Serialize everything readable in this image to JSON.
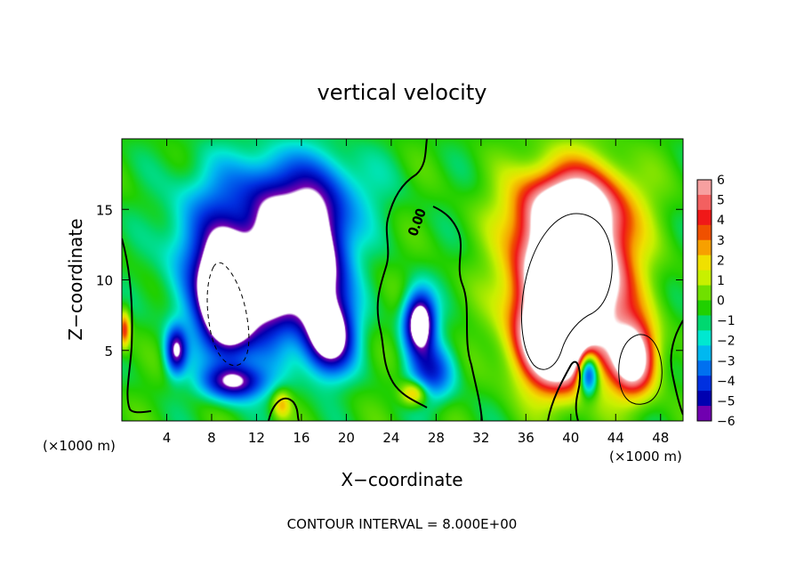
{
  "chart_data": {
    "type": "heatmap",
    "title": "vertical velocity",
    "xlabel": "X−coordinate",
    "ylabel": "Z−coordinate",
    "x_unit_left": "(×1000 m)",
    "x_unit_right": "(×1000 m)",
    "footer": "CONTOUR INTERVAL = 8.000E+00",
    "contour_label": "0.00",
    "xlim": [
      0,
      50
    ],
    "ylim": [
      0,
      20
    ],
    "x_ticks": [
      "4",
      "8",
      "12",
      "16",
      "20",
      "24",
      "28",
      "32",
      "36",
      "40",
      "44",
      "48"
    ],
    "x_tick_values": [
      4,
      8,
      12,
      16,
      20,
      24,
      28,
      32,
      36,
      40,
      44,
      48
    ],
    "y_ticks": [
      "5",
      "10",
      "15"
    ],
    "y_tick_values": [
      5,
      10,
      15
    ],
    "colorbar": {
      "labels": [
        "6",
        "5",
        "4",
        "3",
        "2",
        "1",
        "0",
        "−1",
        "−2",
        "−3",
        "−4",
        "−5",
        "−6"
      ],
      "values": [
        6,
        5,
        4,
        3,
        2,
        1,
        0,
        -1,
        -2,
        -3,
        -4,
        -5,
        -6
      ],
      "colors_top_to_bottom": [
        "#f7a0a0",
        "#f36060",
        "#f01818",
        "#f05000",
        "#f7a000",
        "#f0e000",
        "#c8f000",
        "#70e000",
        "#20d000",
        "#00d870",
        "#00e8d0",
        "#00b8f0",
        "#0070f0",
        "#0030e0",
        "#0000b0",
        "#7000b0"
      ]
    },
    "field_blobs": [
      {
        "x": 9.5,
        "z": 8.8,
        "sx": 2.2,
        "sz": 3.6,
        "amp": -14
      },
      {
        "x": 7.8,
        "z": 11.5,
        "sx": 3.5,
        "sz": 5,
        "amp": -4
      },
      {
        "x": 13,
        "z": 10.5,
        "sx": 2.1,
        "sz": 4.5,
        "amp": -8
      },
      {
        "x": 17,
        "z": 11,
        "sx": 2.8,
        "sz": 4.5,
        "amp": -10
      },
      {
        "x": 18.5,
        "z": 6,
        "sx": 2,
        "sz": 2.4,
        "amp": -8
      },
      {
        "x": 15,
        "z": 16,
        "sx": 6,
        "sz": 3,
        "amp": -4
      },
      {
        "x": 4.8,
        "z": 5,
        "sx": 0.9,
        "sz": 1.6,
        "amp": -6
      },
      {
        "x": 10,
        "z": 2.8,
        "sx": 2.6,
        "sz": 1.2,
        "amp": -6
      },
      {
        "x": 26.5,
        "z": 7,
        "sx": 1.3,
        "sz": 2,
        "amp": -9
      },
      {
        "x": 27.5,
        "z": 3.5,
        "sx": 2,
        "sz": 2,
        "amp": -4
      },
      {
        "x": 26,
        "z": 2,
        "sx": 1.2,
        "sz": 0.9,
        "amp": 3.5
      },
      {
        "x": 40,
        "z": 10.5,
        "sx": 4.5,
        "sz": 5.5,
        "amp": 14
      },
      {
        "x": 38.5,
        "z": 5.5,
        "sx": 3,
        "sz": 3,
        "amp": 9
      },
      {
        "x": 40,
        "z": 15.5,
        "sx": 5,
        "sz": 2.5,
        "amp": 4
      },
      {
        "x": 45.5,
        "z": 4.5,
        "sx": 2,
        "sz": 2.6,
        "amp": 8
      },
      {
        "x": 41.5,
        "z": 3.5,
        "sx": 0.9,
        "sz": 1.6,
        "amp": -7
      },
      {
        "x": 0.2,
        "z": 6.5,
        "sx": 0.5,
        "sz": 1.3,
        "amp": 4
      },
      {
        "x": 14.2,
        "z": 1.2,
        "sx": 0.8,
        "sz": 1,
        "amp": 2.5
      }
    ]
  }
}
